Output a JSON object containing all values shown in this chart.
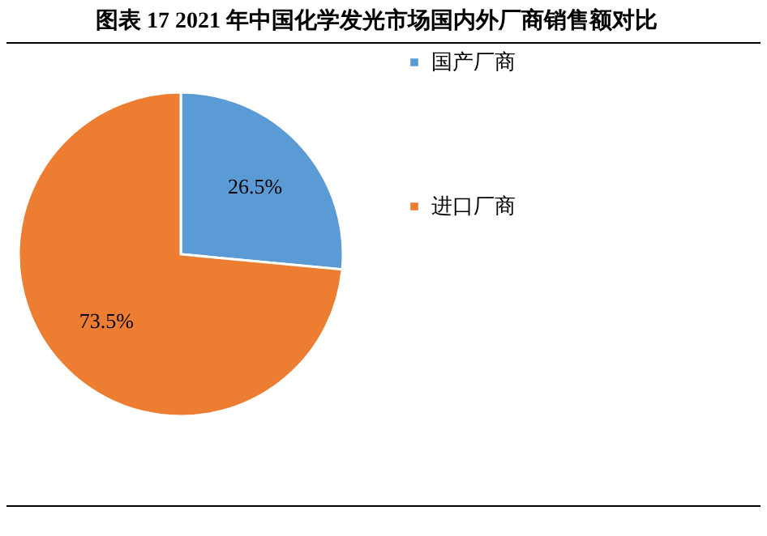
{
  "chart_data": {
    "type": "pie",
    "title": "图表 17 2021 年中国化学发光市场国内外厂商销售额对比",
    "categories": [
      "国产厂商",
      "进口厂商"
    ],
    "values": [
      26.5,
      73.5
    ],
    "colors": [
      "#5b9bd5",
      "#ed7d31"
    ],
    "value_labels": [
      "26.5%",
      "73.5%"
    ],
    "legend": "right"
  }
}
